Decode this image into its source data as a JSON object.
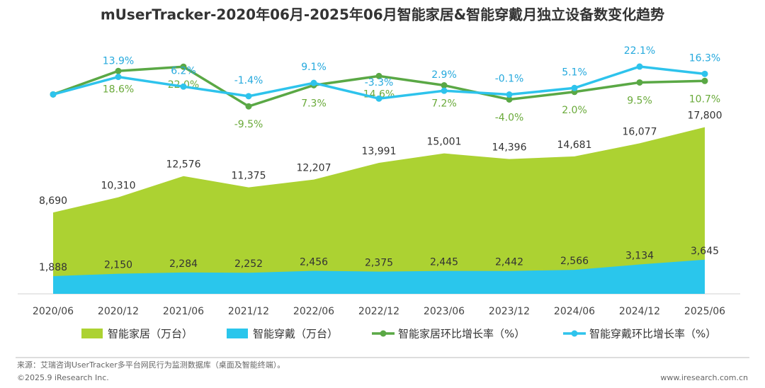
{
  "chart_data": {
    "type": "area",
    "title": "mUserTracker-2020年06月-2025年06月智能家居&智能穿戴月独立设备数变化趋势",
    "categories": [
      "2020/06",
      "2020/12",
      "2021/06",
      "2021/12",
      "2022/06",
      "2022/12",
      "2023/06",
      "2023/12",
      "2024/06",
      "2024/12",
      "2025/06"
    ],
    "ylim": [
      0,
      18000
    ],
    "y2lim": [
      -15,
      30
    ],
    "series": [
      {
        "name": "智能家居（万台）",
        "type": "area",
        "color": "#acd232",
        "values": [
          8690,
          10310,
          12576,
          11375,
          12207,
          13991,
          15001,
          14396,
          14681,
          16077,
          17800
        ],
        "value_labels": [
          "8,690",
          "10,310",
          "12,576",
          "11,375",
          "12,207",
          "13,991",
          "15,001",
          "14,396",
          "14,681",
          "16,077",
          "17,800"
        ]
      },
      {
        "name": "智能穿戴（万台）",
        "type": "area",
        "color": "#2ac6ec",
        "values": [
          1888,
          2150,
          2284,
          2252,
          2456,
          2375,
          2445,
          2442,
          2566,
          3134,
          3645
        ],
        "value_labels": [
          "1,888",
          "2,150",
          "2,284",
          "2,252",
          "2,456",
          "2,375",
          "2,445",
          "2,442",
          "2,566",
          "3,134",
          "3,645"
        ]
      },
      {
        "name": "智能家居环比增长率（%）",
        "type": "line",
        "axis": "y2",
        "color": "#5aa845",
        "label_color": "#6aaa3a",
        "values": [
          0,
          18.6,
          22.0,
          -9.5,
          7.3,
          14.6,
          7.2,
          -4.0,
          2.0,
          9.5,
          10.7
        ],
        "value_labels": [
          null,
          "18.6%",
          "22.0%",
          "-9.5%",
          "7.3%",
          "14.6%",
          "7.2%",
          "-4.0%",
          "2.0%",
          "9.5%",
          "10.7%"
        ]
      },
      {
        "name": "智能穿戴环比增长率（%）",
        "type": "line",
        "axis": "y2",
        "color": "#2ec3ec",
        "label_color": "#25a9dd",
        "values": [
          0,
          13.9,
          6.2,
          -1.4,
          9.1,
          -3.3,
          2.9,
          -0.1,
          5.1,
          22.1,
          16.3
        ],
        "value_labels": [
          null,
          "13.9%",
          "6.2%",
          "-1.4%",
          "9.1%",
          "-3.3%",
          "2.9%",
          "-0.1%",
          "5.1%",
          "22.1%",
          "16.3%"
        ]
      }
    ],
    "source": "来源：艾瑞咨询UserTracker多平台网民行为监测数据库（桌面及智能终端）。",
    "copyright": "©2025.9 iResearch Inc.",
    "website": "www.iresearch.com.cn"
  }
}
